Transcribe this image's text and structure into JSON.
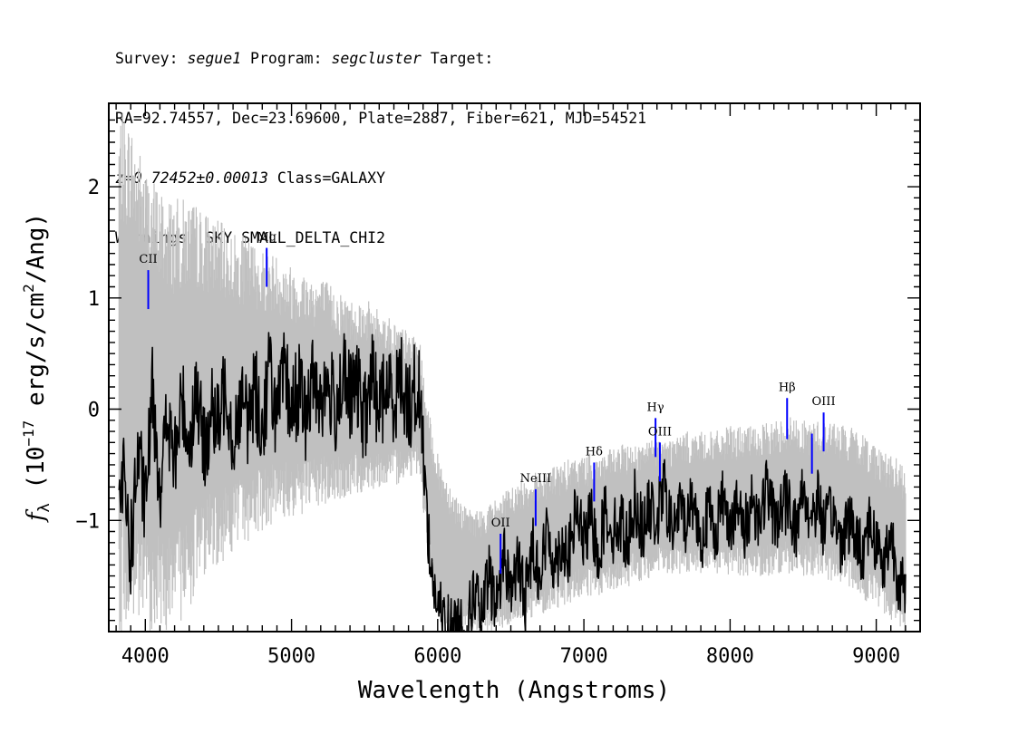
{
  "header": {
    "survey_label": "Survey:",
    "survey": "segue1",
    "program_label": "Program:",
    "program": "segcluster",
    "target_label": "Target:",
    "coords": "RA=92.74557, Dec=23.69600, Plate=2887, Fiber=621, MJD=54521",
    "redshift": "z=0.72452±0.00013",
    "class": "Class=GALAXY",
    "warnings": "Warnings: SKY SMALL_DELTA_CHI2"
  },
  "chart_data": {
    "type": "line",
    "title": "",
    "xlabel": "Wavelength (Angstroms)",
    "ylabel": "f_λ (10^-17 erg/s/cm^2/Ang)",
    "xlim": [
      3750,
      9300
    ],
    "ylim": [
      -2.0,
      2.75
    ],
    "x_ticks": [
      4000,
      5000,
      6000,
      7000,
      8000,
      9000
    ],
    "y_ticks": [
      -1,
      0,
      1,
      2
    ],
    "grid": false,
    "series": [
      {
        "style": "error band",
        "color": "#c0c0c0",
        "x": [
          3820,
          3900,
          4000,
          4100,
          4200,
          4300,
          4400,
          4500,
          4600,
          4700,
          4800,
          4900,
          5000,
          5100,
          5200,
          5300,
          5400,
          5500,
          5600,
          5700,
          5800,
          5880,
          5920,
          6000,
          6100,
          6200,
          6300,
          6400,
          6500,
          6600,
          6700,
          6800,
          6900,
          7000,
          7100,
          7200,
          7300,
          7400,
          7500,
          7600,
          7700,
          7800,
          7900,
          8000,
          8100,
          8200,
          8300,
          8400,
          8500,
          8600,
          8700,
          8800,
          8900,
          9000,
          9100,
          9200
        ],
        "upper": [
          2.7,
          2.6,
          2.2,
          2.0,
          1.9,
          1.9,
          1.8,
          1.7,
          1.6,
          1.55,
          1.45,
          1.4,
          1.3,
          1.25,
          1.2,
          1.1,
          1.0,
          1.0,
          0.9,
          0.8,
          0.7,
          0.6,
          0.1,
          -0.4,
          -0.7,
          -0.9,
          -0.9,
          -0.8,
          -0.7,
          -0.6,
          -0.55,
          -0.5,
          -0.45,
          -0.4,
          -0.4,
          -0.35,
          -0.3,
          -0.3,
          -0.25,
          -0.25,
          -0.2,
          -0.2,
          -0.2,
          -0.15,
          -0.15,
          -0.15,
          -0.1,
          -0.05,
          -0.1,
          -0.1,
          -0.1,
          -0.15,
          -0.2,
          -0.3,
          -0.4,
          -0.5
        ],
        "lower": [
          -2.0,
          -2.0,
          -2.0,
          -2.0,
          -2.0,
          -1.8,
          -1.5,
          -1.4,
          -1.3,
          -1.2,
          -1.1,
          -1.0,
          -1.0,
          -0.95,
          -0.9,
          -0.85,
          -0.8,
          -0.75,
          -0.7,
          -0.7,
          -0.6,
          -0.6,
          -1.2,
          -1.9,
          -2.0,
          -2.0,
          -2.0,
          -2.0,
          -1.95,
          -1.9,
          -1.85,
          -1.8,
          -1.75,
          -1.7,
          -1.7,
          -1.65,
          -1.6,
          -1.55,
          -1.5,
          -1.5,
          -1.5,
          -1.5,
          -1.5,
          -1.5,
          -1.5,
          -1.5,
          -1.5,
          -1.5,
          -1.5,
          -1.5,
          -1.55,
          -1.6,
          -1.7,
          -1.8,
          -1.9,
          -2.0
        ]
      },
      {
        "style": "flux",
        "color": "#000000",
        "x": [
          3820,
          3850,
          3900,
          3950,
          4000,
          4050,
          4100,
          4150,
          4200,
          4250,
          4300,
          4350,
          4400,
          4450,
          4500,
          4550,
          4600,
          4650,
          4700,
          4750,
          4800,
          4850,
          4900,
          4950,
          5000,
          5050,
          5100,
          5150,
          5200,
          5250,
          5300,
          5350,
          5400,
          5450,
          5500,
          5550,
          5600,
          5650,
          5700,
          5750,
          5800,
          5850,
          5880,
          5900,
          5920,
          5950,
          6000,
          6050,
          6100,
          6150,
          6200,
          6250,
          6300,
          6350,
          6400,
          6450,
          6500,
          6550,
          6600,
          6650,
          6700,
          6750,
          6800,
          6850,
          6900,
          6950,
          7000,
          7050,
          7100,
          7150,
          7200,
          7250,
          7300,
          7350,
          7400,
          7450,
          7500,
          7550,
          7600,
          7650,
          7700,
          7750,
          7800,
          7850,
          7900,
          7950,
          8000,
          8050,
          8100,
          8150,
          8200,
          8250,
          8300,
          8350,
          8400,
          8450,
          8500,
          8550,
          8600,
          8650,
          8700,
          8750,
          8800,
          8850,
          8900,
          8950,
          9000,
          9050,
          9100,
          9150,
          9200
        ],
        "y": [
          -1.1,
          -0.6,
          -1.3,
          -0.4,
          -0.9,
          0.2,
          -0.7,
          -0.1,
          -0.5,
          0.1,
          -0.3,
          0.2,
          -0.4,
          0.0,
          -0.2,
          0.3,
          -0.3,
          0.1,
          -0.1,
          0.2,
          -0.2,
          0.4,
          -0.1,
          0.3,
          0.0,
          0.2,
          -0.1,
          0.3,
          0.1,
          0.2,
          0.0,
          0.3,
          0.1,
          0.2,
          -0.1,
          0.3,
          0.0,
          0.2,
          0.1,
          0.3,
          0.0,
          0.2,
          0.1,
          -0.3,
          -0.8,
          -1.4,
          -1.8,
          -1.9,
          -2.0,
          -1.9,
          -2.0,
          -1.6,
          -1.9,
          -1.5,
          -1.8,
          -1.3,
          -1.6,
          -1.4,
          -1.7,
          -1.2,
          -1.5,
          -1.1,
          -1.4,
          -1.2,
          -1.3,
          -0.9,
          -1.2,
          -1.0,
          -1.3,
          -0.9,
          -1.1,
          -1.0,
          -1.2,
          -0.8,
          -1.1,
          -0.9,
          -1.0,
          -0.7,
          -1.1,
          -0.9,
          -1.0,
          -0.8,
          -1.2,
          -0.9,
          -1.1,
          -0.8,
          -1.0,
          -0.9,
          -1.1,
          -0.8,
          -1.0,
          -0.7,
          -1.0,
          -0.9,
          -0.8,
          -1.1,
          -0.7,
          -1.0,
          -0.8,
          -1.1,
          -0.9,
          -1.2,
          -1.0,
          -1.1,
          -1.3,
          -1.0,
          -1.2,
          -1.4,
          -1.1,
          -1.5,
          -1.7
        ]
      }
    ],
    "spectral_lines": [
      {
        "label": "CII",
        "x": 4020,
        "y_bottom": 0.9,
        "y_top": 1.25,
        "color": "#0000ff"
      },
      {
        "label": "Mg",
        "x": 4830,
        "y_bottom": 1.1,
        "y_top": 1.45,
        "color": "#0000ff"
      },
      {
        "label": "OII",
        "x": 6430,
        "y_bottom": -1.48,
        "y_top": -1.12,
        "color": "#0000ff"
      },
      {
        "label": "NeIII",
        "x": 6670,
        "y_bottom": -1.05,
        "y_top": -0.72,
        "color": "#0000ff"
      },
      {
        "label": "Hδ",
        "x": 7070,
        "y_bottom": -0.83,
        "y_top": -0.48,
        "color": "#0000ff"
      },
      {
        "label": "Hγ",
        "x": 7490,
        "y_bottom": -0.43,
        "y_top": -0.08,
        "color": "#0000ff"
      },
      {
        "label": "OIII",
        "x": 7520,
        "y_bottom": -0.65,
        "y_top": -0.3,
        "color": "#0000ff"
      },
      {
        "label": "Hβ",
        "x": 8390,
        "y_bottom": -0.27,
        "y_top": 0.1,
        "color": "#0000ff"
      },
      {
        "label": "",
        "x": 8560,
        "y_bottom": -0.58,
        "y_top": -0.22,
        "color": "#0000ff"
      },
      {
        "label": "OIII",
        "x": 8640,
        "y_bottom": -0.38,
        "y_top": -0.03,
        "color": "#0000ff"
      }
    ]
  }
}
